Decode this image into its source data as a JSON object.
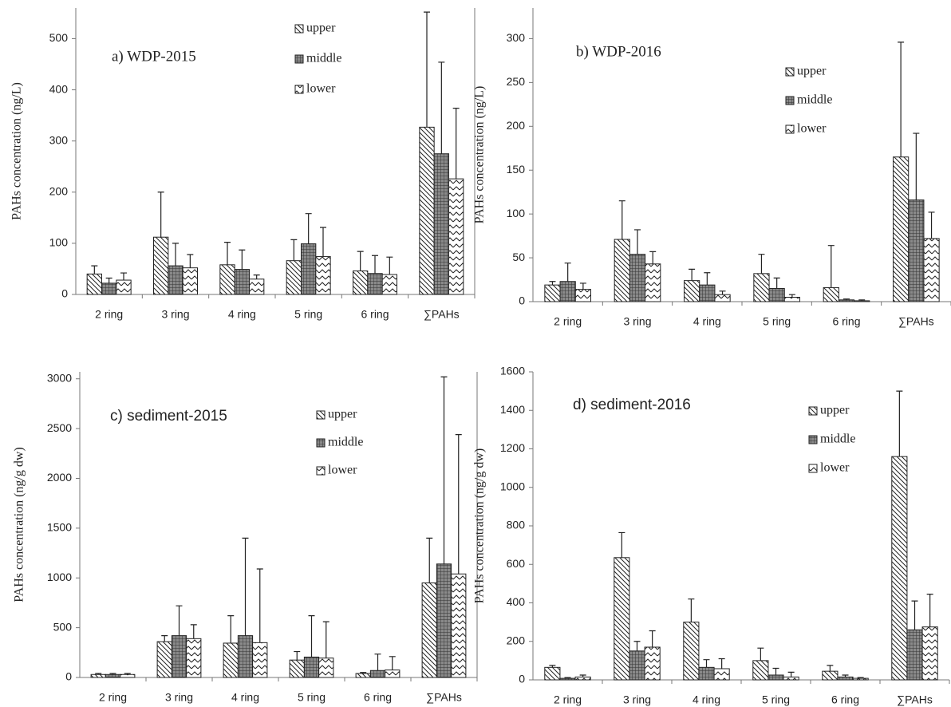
{
  "chart_data": [
    {
      "type": "bar",
      "title": "a) WDP-2015",
      "ylabel": "PAHs concentration (ng/L)",
      "categories": [
        "2 ring",
        "3 ring",
        "4 ring",
        "5 ring",
        "6 ring",
        "∑PAHs"
      ],
      "series": [
        {
          "name": "upper",
          "hatch": "diagonal",
          "values": [
            40,
            112,
            58,
            66,
            46,
            327
          ],
          "errors": [
            16,
            88,
            44,
            41,
            38,
            225
          ]
        },
        {
          "name": "middle",
          "hatch": "crosshatch",
          "values": [
            22,
            56,
            49,
            99,
            41,
            275
          ],
          "errors": [
            10,
            44,
            38,
            59,
            35,
            179
          ]
        },
        {
          "name": "lower",
          "hatch": "zigzag",
          "values": [
            28,
            52,
            30,
            74,
            39,
            226
          ],
          "errors": [
            14,
            26,
            8,
            57,
            34,
            138
          ]
        }
      ],
      "ylim": [
        0,
        560
      ],
      "yticks": [
        0,
        100,
        200,
        300,
        400,
        500
      ]
    },
    {
      "type": "bar",
      "title": "b) WDP-2016",
      "ylabel": "PAHs concentration (ng/L)",
      "categories": [
        "2 ring",
        "3 ring",
        "4 ring",
        "5 ring",
        "6 ring",
        "∑PAHs"
      ],
      "series": [
        {
          "name": "upper",
          "hatch": "diagonal",
          "values": [
            19,
            71,
            24,
            32,
            16,
            165
          ],
          "errors": [
            4,
            44,
            13,
            22,
            48,
            131
          ]
        },
        {
          "name": "middle",
          "hatch": "crosshatch",
          "values": [
            23,
            54,
            19,
            15,
            2,
            116
          ],
          "errors": [
            21,
            28,
            14,
            12,
            1,
            76
          ]
        },
        {
          "name": "lower",
          "hatch": "zigzag",
          "values": [
            14,
            43,
            8,
            5,
            1,
            72
          ],
          "errors": [
            7,
            14,
            4,
            3,
            1,
            30
          ]
        }
      ],
      "ylim": [
        0,
        335
      ],
      "yticks": [
        0,
        50,
        100,
        150,
        200,
        250,
        300
      ]
    },
    {
      "type": "bar",
      "title": "c) sediment-2015",
      "ylabel": "PAHs concentration (ng/g dw)",
      "categories": [
        "2 ring",
        "3 ring",
        "4 ring",
        "5 ring",
        "6 ring",
        "∑PAHs"
      ],
      "series": [
        {
          "name": "upper",
          "hatch": "diagonal",
          "values": [
            30,
            360,
            345,
            175,
            40,
            950
          ],
          "errors": [
            10,
            60,
            275,
            85,
            10,
            450
          ]
        },
        {
          "name": "middle",
          "hatch": "crosshatch",
          "values": [
            30,
            420,
            420,
            205,
            70,
            1140
          ],
          "errors": [
            10,
            300,
            980,
            415,
            165,
            1880
          ]
        },
        {
          "name": "lower",
          "hatch": "zigzag",
          "values": [
            30,
            390,
            350,
            195,
            75,
            1040
          ],
          "errors": [
            10,
            140,
            740,
            365,
            135,
            1400
          ]
        }
      ],
      "ylim": [
        0,
        3070
      ],
      "yticks": [
        0,
        500,
        1000,
        1500,
        2000,
        2500,
        3000
      ]
    },
    {
      "type": "bar",
      "title": "d) sediment-2016",
      "ylabel": "PAHs concentration (ng/g dw)",
      "categories": [
        "2 ring",
        "3 ring",
        "4 ring",
        "5 ring",
        "6 ring",
        "∑PAHs"
      ],
      "series": [
        {
          "name": "upper",
          "hatch": "diagonal",
          "values": [
            65,
            635,
            300,
            100,
            45,
            1160
          ],
          "errors": [
            10,
            130,
            120,
            65,
            30,
            340
          ]
        },
        {
          "name": "middle",
          "hatch": "crosshatch",
          "values": [
            8,
            150,
            65,
            25,
            15,
            260
          ],
          "errors": [
            4,
            50,
            40,
            35,
            10,
            150
          ]
        },
        {
          "name": "lower",
          "hatch": "zigzag",
          "values": [
            15,
            170,
            58,
            15,
            8,
            275
          ],
          "errors": [
            10,
            85,
            52,
            25,
            4,
            170
          ]
        }
      ],
      "ylim": [
        0,
        1600
      ],
      "yticks": [
        0,
        200,
        400,
        600,
        800,
        1000,
        1200,
        1400,
        1600
      ]
    }
  ]
}
